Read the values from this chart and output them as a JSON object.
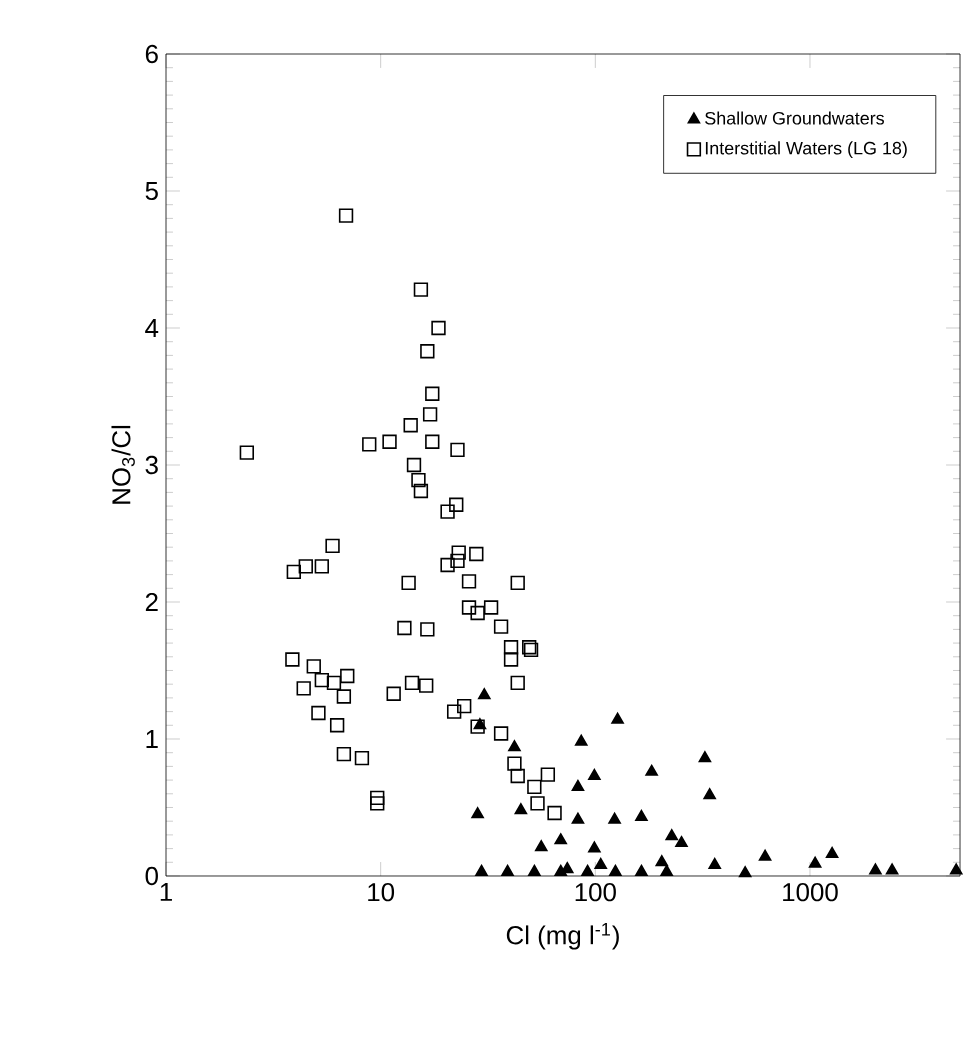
{
  "chart_data": {
    "type": "scatter",
    "xlabel": "Cl (mg l$^{-1}$)",
    "ylabel": "NO$_{3}$/Cl",
    "log": "x",
    "xlim": [
      1,
      5000
    ],
    "ylim": [
      0,
      6
    ],
    "xticks": [
      1,
      10,
      100,
      1000
    ],
    "yticks": [
      0,
      1,
      2,
      3,
      4,
      5,
      6
    ],
    "legend": "top right",
    "series": [
      {
        "name": "Shallow Groundwaters",
        "color": "#000000",
        "marker": "triangle",
        "x": [
          30.4,
          28.3,
          42,
          29,
          86,
          127,
          183,
          99,
          83,
          45,
          56,
          83,
          123,
          164,
          227,
          29.5,
          39,
          52,
          69,
          92,
          124,
          164,
          215,
          69,
          99,
          324,
          341,
          252,
          618,
          1268,
          1057,
          360,
          499,
          2018,
          2413,
          4800,
          204,
          106,
          74
        ],
        "values": [
          1.32,
          0.45,
          0.94,
          1.1,
          0.98,
          1.14,
          0.76,
          0.73,
          0.65,
          0.48,
          0.21,
          0.41,
          0.41,
          0.43,
          0.29,
          0.03,
          0.03,
          0.03,
          0.03,
          0.03,
          0.03,
          0.03,
          0.03,
          0.26,
          0.2,
          0.86,
          0.59,
          0.24,
          0.14,
          0.16,
          0.09,
          0.08,
          0.02,
          0.04,
          0.04,
          0.04,
          0.1,
          0.08,
          0.05
        ]
      },
      {
        "name": "Interstitial Waters (LG 18)",
        "color": "#000000",
        "marker": "square",
        "x": [
          6.9,
          15.4,
          18.6,
          16.5,
          17.4,
          17,
          13.8,
          17.4,
          22.8,
          8.85,
          11,
          2.38,
          14.3,
          15,
          15.4,
          22.5,
          20.5,
          5.97,
          5.32,
          4.48,
          3.94,
          23.1,
          27.9,
          20.5,
          22.8,
          25.8,
          43.5,
          13.5,
          25.8,
          28.3,
          32.7,
          36.4,
          12.9,
          16.5,
          40.5,
          49.2,
          3.88,
          4.88,
          4.38,
          5.32,
          6.06,
          6.99,
          6.74,
          5.13,
          6.27,
          6.74,
          8.18,
          9.64,
          9.64,
          11.5,
          14,
          16.3,
          22,
          24.5,
          28.3,
          36.4,
          43.5,
          40.5,
          50.2,
          42,
          43.5,
          60.1,
          52,
          53.8,
          64.6
        ],
        "values": [
          4.82,
          4.28,
          4.0,
          3.83,
          3.52,
          3.37,
          3.29,
          3.17,
          3.11,
          3.15,
          3.17,
          3.09,
          3.0,
          2.89,
          2.81,
          2.71,
          2.66,
          2.41,
          2.26,
          2.26,
          2.22,
          2.36,
          2.35,
          2.27,
          2.3,
          2.15,
          2.14,
          2.14,
          1.96,
          1.92,
          1.96,
          1.82,
          1.81,
          1.8,
          1.67,
          1.67,
          1.58,
          1.53,
          1.37,
          1.43,
          1.41,
          1.46,
          1.31,
          1.19,
          1.1,
          0.89,
          0.86,
          0.57,
          0.53,
          1.33,
          1.41,
          1.39,
          1.2,
          1.24,
          1.09,
          1.04,
          1.41,
          1.58,
          1.65,
          0.82,
          0.73,
          0.74,
          0.65,
          0.53,
          0.46
        ]
      }
    ]
  }
}
